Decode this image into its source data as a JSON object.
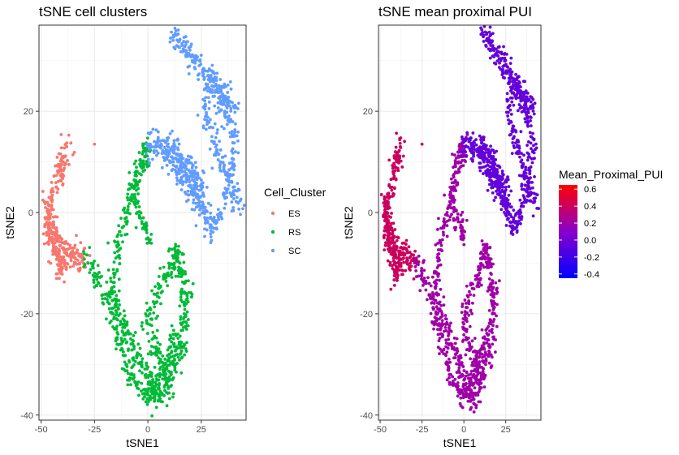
{
  "chart_data": [
    {
      "type": "scatter",
      "title": "tSNE cell clusters",
      "xlabel": "tSNE1",
      "ylabel": "tSNE2",
      "xlim": [
        -51,
        46
      ],
      "ylim": [
        -41,
        37
      ],
      "x_ticks": [
        -50,
        -25,
        0,
        25
      ],
      "y_ticks": [
        -40,
        -20,
        0,
        20
      ],
      "x_tick_labels": [
        "-50",
        "-25",
        "0",
        "25"
      ],
      "y_tick_labels": [
        "-40",
        "-20",
        "0",
        "20"
      ],
      "grid": true,
      "legend": {
        "title": "Cell_Cluster",
        "placement": "right",
        "entries": [
          {
            "label": "ES",
            "color": "#F8766D"
          },
          {
            "label": "RS",
            "color": "#00BA38"
          },
          {
            "label": "SC",
            "color": "#619CFF"
          }
        ]
      },
      "color_by": "cluster",
      "series": [
        {
          "name": "ES",
          "color": "#F8766D",
          "x": [
            -47,
            -46,
            -45,
            -44,
            -45,
            -43,
            -42,
            -41,
            -40,
            -39,
            -38,
            -39,
            -40,
            -41,
            -42,
            -43,
            -44,
            -45,
            -46,
            -47,
            -46,
            -44,
            -42,
            -40,
            -38,
            -36,
            -34,
            -32,
            -30,
            -35,
            -25
          ],
          "y": [
            0,
            -3,
            -5,
            -7,
            3,
            5,
            8,
            9,
            10,
            11,
            13,
            -10,
            -11,
            -12,
            -9,
            -8,
            -6,
            -4,
            -2,
            2,
            -1,
            -3,
            -5,
            -7,
            -8,
            -9,
            -9,
            -10,
            -9,
            -7,
            13.5
          ]
        },
        {
          "name": "RS",
          "color": "#00BA38",
          "x": [
            -28,
            -25,
            -23,
            -20,
            -18,
            -16,
            -14,
            -12,
            -10,
            -8,
            -5,
            -2,
            0,
            2,
            4,
            6,
            8,
            10,
            12,
            14,
            16,
            17,
            18,
            18,
            17,
            16,
            15,
            14,
            13,
            12,
            10,
            8,
            5,
            3,
            1,
            0,
            2,
            4,
            6,
            8,
            10,
            0,
            -2,
            -4,
            -6,
            -7,
            -5,
            -3,
            -1,
            0,
            -2,
            -5,
            -8,
            -10,
            -12,
            -14,
            -15,
            -16,
            -17,
            -15,
            -13,
            -11,
            -9,
            -7,
            -5,
            -3,
            -1,
            1,
            3,
            5,
            7,
            9,
            11,
            13,
            15,
            17
          ],
          "y": [
            -10,
            -12,
            -14,
            -17,
            -19,
            -21,
            -24,
            -27,
            -30,
            -32,
            -34,
            -35,
            -36,
            -35,
            -34,
            -32,
            -30,
            -28,
            -26,
            -24,
            -22,
            -20,
            -18,
            -16,
            -14,
            -12,
            -10,
            -9,
            -8,
            -9,
            -11,
            -13,
            -15,
            -18,
            -20,
            -22,
            -25,
            -27,
            -29,
            -31,
            -33,
            -5,
            -3,
            -1,
            2,
            5,
            8,
            10,
            12,
            13,
            9,
            6,
            3,
            0,
            -3,
            -6,
            -9,
            -12,
            -15,
            -18,
            -20,
            -22,
            -24,
            -26,
            -28,
            -30,
            -32,
            -34,
            -36,
            -37,
            -36,
            -34,
            -32,
            -30,
            -28,
            -26
          ]
        },
        {
          "name": "SC",
          "color": "#619CFF",
          "x": [
            0,
            3,
            6,
            9,
            12,
            15,
            18,
            20,
            22,
            24,
            26,
            28,
            30,
            32,
            34,
            36,
            38,
            40,
            41,
            40,
            38,
            36,
            34,
            32,
            30,
            28,
            27,
            28,
            30,
            32,
            34,
            36,
            38,
            40,
            42,
            12,
            14,
            16,
            18,
            20,
            22,
            24,
            26,
            28,
            30,
            32,
            34,
            36,
            38,
            40,
            10,
            12,
            14,
            16,
            18,
            20,
            22,
            24,
            26,
            5,
            8,
            11,
            14,
            17,
            20,
            23,
            25
          ],
          "y": [
            13,
            14,
            13,
            12,
            13,
            11,
            10,
            8,
            5,
            2,
            0,
            -2,
            -3,
            -2,
            0,
            3,
            6,
            9,
            12,
            15,
            18,
            20,
            22,
            24,
            25,
            24,
            21,
            18,
            15,
            12,
            10,
            8,
            6,
            4,
            2,
            35,
            34,
            33,
            32,
            31,
            30,
            29,
            28,
            27,
            26,
            25,
            24,
            23,
            22,
            21,
            12,
            10,
            8,
            7,
            6,
            5,
            4,
            3,
            1,
            13,
            12,
            11,
            10,
            9,
            8,
            7,
            5
          ]
        }
      ]
    },
    {
      "type": "scatter",
      "title": "tSNE mean proximal PUI",
      "xlabel": "tSNE1",
      "ylabel": "tSNE2",
      "xlim": [
        -51,
        46
      ],
      "ylim": [
        -41,
        37
      ],
      "x_ticks": [
        -50,
        -25,
        0,
        25
      ],
      "y_ticks": [
        -40,
        -20,
        0,
        20
      ],
      "x_tick_labels": [
        "-50",
        "-25",
        "0",
        "25"
      ],
      "y_tick_labels": [
        "-40",
        "-20",
        "0",
        "20"
      ],
      "grid": true,
      "legend": {
        "title": "Mean_Proximal_PUI",
        "placement": "right",
        "type": "colorbar",
        "range": [
          -0.45,
          0.65
        ],
        "ticks": [
          0.6,
          0.4,
          0.2,
          0.0,
          -0.2,
          -0.4
        ],
        "tick_labels": [
          "0.6",
          "0.4",
          "0.2",
          "0.0",
          "-0.2",
          "-0.4"
        ],
        "colors": {
          "low": "#0000FF",
          "mid": "#8A00CC",
          "high": "#FF0000"
        }
      },
      "color_by": "value",
      "series": [
        {
          "name": "ES",
          "value": 0.4
        },
        {
          "name": "RS",
          "value": 0.2
        },
        {
          "name": "SC",
          "value": -0.05
        }
      ]
    }
  ]
}
